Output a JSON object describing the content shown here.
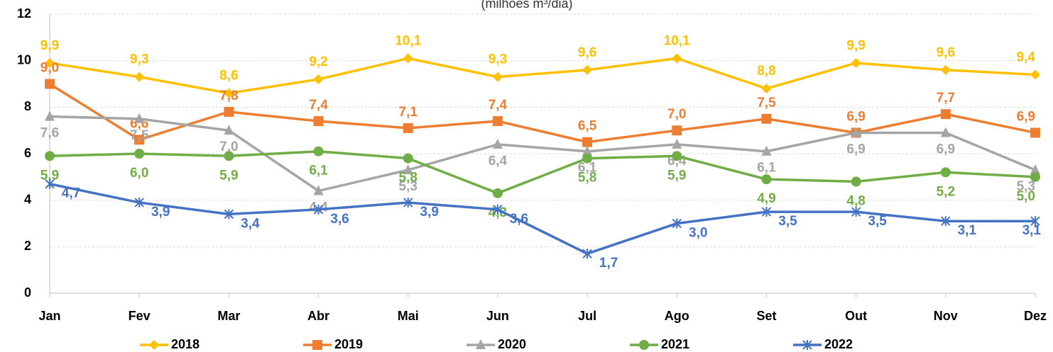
{
  "chart_data": {
    "type": "line",
    "subtitle": "(milhões m³/dia)",
    "categories": [
      "Jan",
      "Fev",
      "Mar",
      "Abr",
      "Mai",
      "Jun",
      "Jul",
      "Ago",
      "Set",
      "Out",
      "Nov",
      "Dez"
    ],
    "ylim": [
      0,
      12
    ],
    "yticks": [
      0,
      2,
      4,
      6,
      8,
      10,
      12
    ],
    "grid": true,
    "legend": "bottom",
    "series": [
      {
        "name": "2018",
        "color": "#FFC000",
        "marker": "diamond",
        "values": [
          9.9,
          9.3,
          8.6,
          9.2,
          10.1,
          9.3,
          9.6,
          10.1,
          8.8,
          9.9,
          9.6,
          9.4
        ],
        "value_labels": [
          "9,9",
          "9,3",
          "8,6",
          "9,2",
          "10,1",
          "9,3",
          "9,6",
          "10,1",
          "8,8",
          "9,9",
          "9,6",
          "9,4"
        ]
      },
      {
        "name": "2019",
        "color": "#ED7D31",
        "marker": "square",
        "values": [
          9.0,
          6.6,
          7.8,
          7.4,
          7.1,
          7.4,
          6.5,
          7.0,
          7.5,
          6.9,
          7.7,
          6.9
        ],
        "value_labels": [
          "9,0",
          "6,6",
          "7,8",
          "7,4",
          "7,1",
          "7,4",
          "6,5",
          "7,0",
          "7,5",
          "6,9",
          "7,7",
          "6,9"
        ]
      },
      {
        "name": "2020",
        "color": "#A5A5A5",
        "marker": "triangle",
        "values": [
          7.6,
          7.5,
          7.0,
          4.4,
          5.3,
          6.4,
          6.1,
          6.4,
          6.1,
          6.9,
          6.9,
          5.3
        ],
        "value_labels": [
          "7,6",
          "7,5",
          "7,0",
          "4,4",
          "5,3",
          "6,4",
          "6,1",
          "6,4",
          "6,1",
          "6,9",
          "6,9",
          "5,3"
        ]
      },
      {
        "name": "2021",
        "color": "#70AD47",
        "marker": "circle",
        "values": [
          5.9,
          6.0,
          5.9,
          6.1,
          5.8,
          4.3,
          5.8,
          5.9,
          4.9,
          4.8,
          5.2,
          5.0
        ],
        "value_labels": [
          "5,9",
          "6,0",
          "5,9",
          "6,1",
          "5,8",
          "4,3",
          "5,8",
          "5,9",
          "4,9",
          "4,8",
          "5,2",
          "5,0"
        ]
      },
      {
        "name": "2022",
        "color": "#4472C4",
        "marker": "star",
        "values": [
          4.7,
          3.9,
          3.4,
          3.6,
          3.9,
          3.6,
          1.7,
          3.0,
          3.5,
          3.5,
          3.1,
          3.1
        ],
        "value_labels": [
          "4,7",
          "3,9",
          "3,4",
          "3,6",
          "3,9",
          "3,6",
          "1,7",
          "3,0",
          "3,5",
          "3,5",
          "3,1",
          "3,1"
        ]
      }
    ]
  }
}
